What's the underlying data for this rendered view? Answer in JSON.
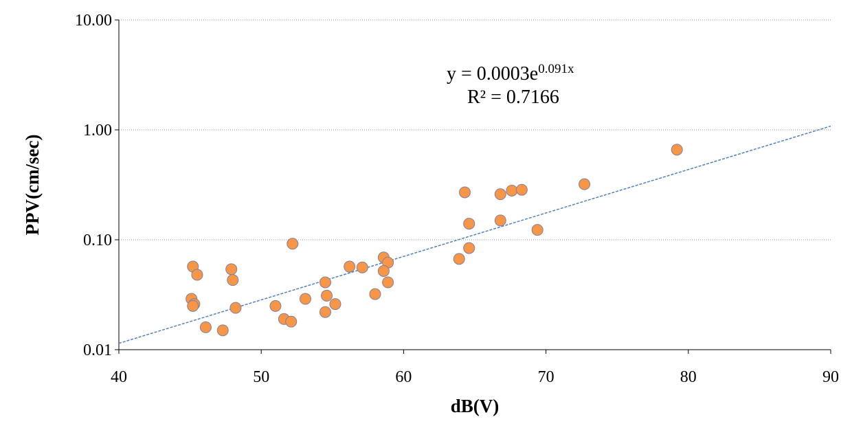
{
  "chart_data": {
    "type": "scatter",
    "xlabel": "dB(V)",
    "ylabel": "PPV(cm/sec)",
    "xlim": [
      40,
      90
    ],
    "ylim": [
      0.01,
      10
    ],
    "yscale": "log",
    "x_ticks": [
      40,
      50,
      60,
      70,
      80,
      90
    ],
    "x_tick_labels": [
      "40",
      "50",
      "60",
      "70",
      "80",
      "90"
    ],
    "y_ticks": [
      0.01,
      0.1,
      1,
      10
    ],
    "y_tick_labels": [
      "0.01",
      "0.10",
      "1.00",
      "10.00"
    ],
    "grid": "horizontal-dotted",
    "legend": "none",
    "marker_color": "#F79646",
    "marker_edge_color": "#7F7FA0",
    "trendline_color": "#4F81BD",
    "trendline": {
      "type": "exponential",
      "a": 0.0003,
      "b": 0.091,
      "x_range": [
        40,
        90
      ],
      "equation_prefix": "y = 0.0003e",
      "equation_exponent": "0.091x",
      "r_squared_label": "R² = 0.7166"
    },
    "points": [
      {
        "x": 45.2,
        "y": 0.057
      },
      {
        "x": 45.5,
        "y": 0.048
      },
      {
        "x": 45.1,
        "y": 0.029
      },
      {
        "x": 45.3,
        "y": 0.026
      },
      {
        "x": 45.2,
        "y": 0.025
      },
      {
        "x": 46.1,
        "y": 0.016
      },
      {
        "x": 47.9,
        "y": 0.054
      },
      {
        "x": 48.0,
        "y": 0.043
      },
      {
        "x": 48.2,
        "y": 0.024
      },
      {
        "x": 47.3,
        "y": 0.015
      },
      {
        "x": 51.0,
        "y": 0.025
      },
      {
        "x": 51.6,
        "y": 0.019
      },
      {
        "x": 52.1,
        "y": 0.018
      },
      {
        "x": 52.2,
        "y": 0.092
      },
      {
        "x": 53.1,
        "y": 0.029
      },
      {
        "x": 54.5,
        "y": 0.041
      },
      {
        "x": 54.6,
        "y": 0.031
      },
      {
        "x": 54.5,
        "y": 0.022
      },
      {
        "x": 55.2,
        "y": 0.026
      },
      {
        "x": 56.2,
        "y": 0.057
      },
      {
        "x": 57.1,
        "y": 0.056
      },
      {
        "x": 58.0,
        "y": 0.032
      },
      {
        "x": 58.6,
        "y": 0.069
      },
      {
        "x": 58.9,
        "y": 0.062
      },
      {
        "x": 58.6,
        "y": 0.052
      },
      {
        "x": 58.9,
        "y": 0.041
      },
      {
        "x": 63.9,
        "y": 0.067
      },
      {
        "x": 64.3,
        "y": 0.27
      },
      {
        "x": 64.6,
        "y": 0.14
      },
      {
        "x": 64.6,
        "y": 0.084
      },
      {
        "x": 66.8,
        "y": 0.26
      },
      {
        "x": 66.8,
        "y": 0.15
      },
      {
        "x": 67.6,
        "y": 0.28
      },
      {
        "x": 68.3,
        "y": 0.285
      },
      {
        "x": 69.4,
        "y": 0.123
      },
      {
        "x": 72.7,
        "y": 0.32
      },
      {
        "x": 79.2,
        "y": 0.66
      }
    ]
  }
}
